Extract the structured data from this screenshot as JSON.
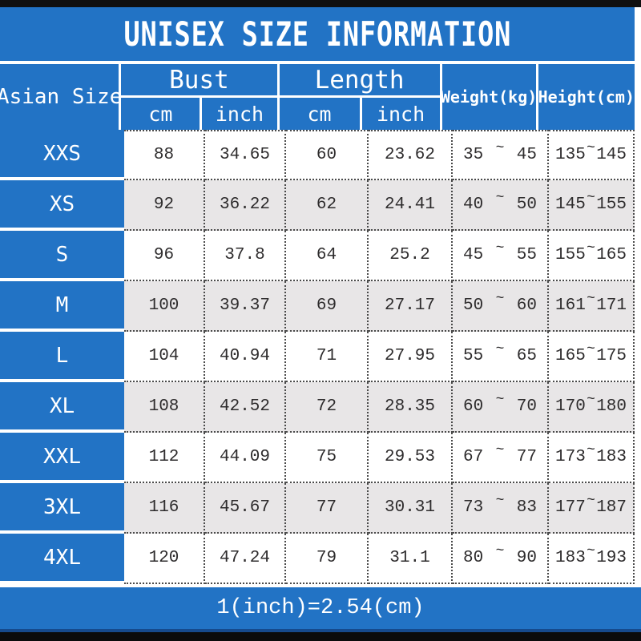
{
  "title": "UNISEX SIZE INFORMATION",
  "footer_note": "1(inch)=2.54(cm)",
  "labels": {
    "asian_size": "Asian Size",
    "bust": "Bust",
    "length": "Length",
    "weight": "Weight(kg)",
    "height": "Height(cm)",
    "cm": "cm",
    "inch": "inch",
    "tilde": "~"
  },
  "colors": {
    "blue": "#2273c5",
    "gray_row": "#e8e6e7",
    "text_dark": "#2e2c2d",
    "bar_black": "#101010"
  },
  "rows": [
    {
      "size": "XXS",
      "bust_cm": "88",
      "bust_inch": "34.65",
      "length_cm": "60",
      "length_inch": "23.62",
      "weight_min": "35",
      "weight_max": "45",
      "height_min": "135",
      "height_max": "145"
    },
    {
      "size": "XS",
      "bust_cm": "92",
      "bust_inch": "36.22",
      "length_cm": "62",
      "length_inch": "24.41",
      "weight_min": "40",
      "weight_max": "50",
      "height_min": "145",
      "height_max": "155"
    },
    {
      "size": "S",
      "bust_cm": "96",
      "bust_inch": "37.8",
      "length_cm": "64",
      "length_inch": "25.2",
      "weight_min": "45",
      "weight_max": "55",
      "height_min": "155",
      "height_max": "165"
    },
    {
      "size": "M",
      "bust_cm": "100",
      "bust_inch": "39.37",
      "length_cm": "69",
      "length_inch": "27.17",
      "weight_min": "50",
      "weight_max": "60",
      "height_min": "161",
      "height_max": "171"
    },
    {
      "size": "L",
      "bust_cm": "104",
      "bust_inch": "40.94",
      "length_cm": "71",
      "length_inch": "27.95",
      "weight_min": "55",
      "weight_max": "65",
      "height_min": "165",
      "height_max": "175"
    },
    {
      "size": "XL",
      "bust_cm": "108",
      "bust_inch": "42.52",
      "length_cm": "72",
      "length_inch": "28.35",
      "weight_min": "60",
      "weight_max": "70",
      "height_min": "170",
      "height_max": "180"
    },
    {
      "size": "XXL",
      "bust_cm": "112",
      "bust_inch": "44.09",
      "length_cm": "75",
      "length_inch": "29.53",
      "weight_min": "67",
      "weight_max": "77",
      "height_min": "173",
      "height_max": "183"
    },
    {
      "size": "3XL",
      "bust_cm": "116",
      "bust_inch": "45.67",
      "length_cm": "77",
      "length_inch": "30.31",
      "weight_min": "73",
      "weight_max": "83",
      "height_min": "177",
      "height_max": "187"
    },
    {
      "size": "4XL",
      "bust_cm": "120",
      "bust_inch": "47.24",
      "length_cm": "79",
      "length_inch": "31.1",
      "weight_min": "80",
      "weight_max": "90",
      "height_min": "183",
      "height_max": "193"
    }
  ],
  "chart_data": {
    "type": "table",
    "title": "UNISEX SIZE INFORMATION",
    "columns": [
      "Asian Size",
      "Bust cm",
      "Bust inch",
      "Length cm",
      "Length inch",
      "Weight(kg)",
      "Height(cm)"
    ],
    "rows": [
      [
        "XXS",
        88,
        34.65,
        60,
        23.62,
        "35~45",
        "135~145"
      ],
      [
        "XS",
        92,
        36.22,
        62,
        24.41,
        "40~50",
        "145~155"
      ],
      [
        "S",
        96,
        37.8,
        64,
        25.2,
        "45~55",
        "155~165"
      ],
      [
        "M",
        100,
        39.37,
        69,
        27.17,
        "50~60",
        "161~171"
      ],
      [
        "L",
        104,
        40.94,
        71,
        27.95,
        "55~65",
        "165~175"
      ],
      [
        "XL",
        108,
        42.52,
        72,
        28.35,
        "60~70",
        "170~180"
      ],
      [
        "XXL",
        112,
        44.09,
        75,
        29.53,
        "67~77",
        "173~183"
      ],
      [
        "3XL",
        116,
        45.67,
        77,
        30.31,
        "73~83",
        "177~187"
      ],
      [
        "4XL",
        120,
        47.24,
        79,
        31.1,
        "80~90",
        "183~193"
      ]
    ],
    "note": "1(inch)=2.54(cm)"
  }
}
